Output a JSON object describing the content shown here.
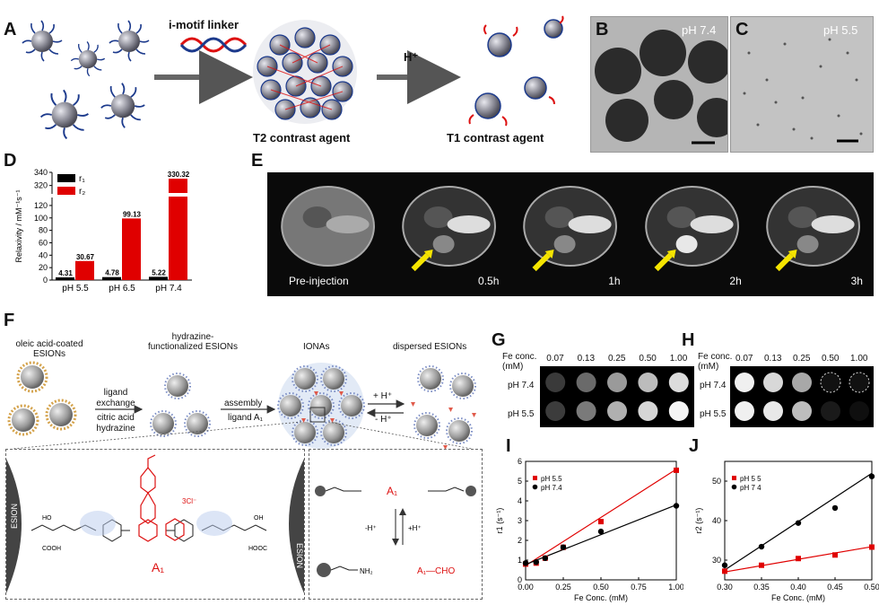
{
  "panels": {
    "A": {
      "letter": "A",
      "linker_label": "i-motif linker",
      "acid_label": "H⁺",
      "t2_label": "T2 contrast agent",
      "t1_label": "T1 contrast agent"
    },
    "B": {
      "letter": "B",
      "ph": "pH 7.4"
    },
    "C": {
      "letter": "C",
      "ph": "pH 5.5"
    },
    "D": {
      "letter": "D"
    },
    "E": {
      "letter": "E",
      "timepoints": [
        "Pre-injection",
        "0.5h",
        "1h",
        "2h",
        "3h"
      ]
    },
    "F": {
      "letter": "F",
      "step1": "oleic acid-coated\nESIONs",
      "step2": "hydrazine-\nfunctionalized  ESIONs",
      "step3": "IONAs",
      "step4": "dispersed ESIONs",
      "arrow1_top": "ligand",
      "arrow1_top2": "exchange",
      "arrow1_bottom": "citric acid",
      "arrow1_bottom2": "hydrazine",
      "arrow2_top": "assembly",
      "arrow2_bottom": "ligand A₁",
      "arrow3_top": "+ H⁺",
      "arrow3_bottom": "- H⁺",
      "esion": "ESION",
      "a1": "A₁",
      "chloride": "3Cl⁻",
      "acid_minus": "-H⁺",
      "acid_plus": "+H⁺",
      "cooh": "COOH",
      "hooc": "HOOC",
      "ho": "HO",
      "oh": "OH",
      "nh2": "NH₂",
      "cho": "A₁—CHO",
      "a1_hydrazone": "A₁"
    },
    "G": {
      "letter": "G",
      "header": "Fe conc.\n(mM)",
      "concs": [
        "0.07",
        "0.13",
        "0.25",
        "0.50",
        "1.00"
      ],
      "rows": [
        "pH 7.4",
        "pH 5.5"
      ]
    },
    "H": {
      "letter": "H",
      "header": "Fe conc.\n(mM)",
      "concs": [
        "0.07",
        "0.13",
        "0.25",
        "0.50",
        "1.00"
      ],
      "rows": [
        "pH 7.4",
        "pH 5.5"
      ]
    },
    "I": {
      "letter": "I"
    },
    "J": {
      "letter": "J"
    }
  },
  "chart_data": [
    {
      "id": "D",
      "type": "bar",
      "categories": [
        "pH 5.5",
        "pH 6.5",
        "pH 7.4"
      ],
      "series": [
        {
          "name": "r₁",
          "color": "#000000",
          "values": [
            4.31,
            4.78,
            5.22
          ]
        },
        {
          "name": "r₂",
          "color": "#e00000",
          "values": [
            30.67,
            99.13,
            330.32
          ]
        }
      ],
      "ylabel": "Relaxivity / mM⁻¹s⁻¹",
      "yticks": [
        "0",
        "20",
        "40",
        "60",
        "80",
        "100",
        "120",
        "320",
        "340"
      ],
      "axis_break": [
        130,
        310
      ],
      "data_labels": [
        "4.31",
        "30.67",
        "4.78",
        "99.13",
        "5.22",
        "330.32"
      ],
      "legend": "top-left"
    },
    {
      "id": "I",
      "type": "scatter",
      "xlabel": "Fe Conc. (mM)",
      "ylabel": "r1 (s⁻¹)",
      "xlim": [
        0,
        1.0
      ],
      "ylim": [
        0,
        6
      ],
      "xticks": [
        "0.00",
        "0.25",
        "0.50",
        "0.75",
        "1.00"
      ],
      "yticks": [
        "0",
        "1",
        "2",
        "3",
        "4",
        "5",
        "6"
      ],
      "series": [
        {
          "name": "pH 5.5",
          "color": "#e00000",
          "marker": "square",
          "x": [
            0.0,
            0.07,
            0.13,
            0.25,
            0.5,
            1.0
          ],
          "y": [
            0.8,
            0.85,
            1.1,
            1.65,
            2.95,
            5.55
          ]
        },
        {
          "name": "pH 7.4",
          "color": "#000000",
          "marker": "circle",
          "x": [
            0.0,
            0.07,
            0.13,
            0.25,
            0.5,
            1.0
          ],
          "y": [
            0.85,
            0.9,
            1.1,
            1.65,
            2.45,
            3.75
          ]
        }
      ],
      "fit_lines": [
        {
          "color": "#e00000",
          "from": [
            0,
            0.72
          ],
          "to": [
            1.0,
            5.6
          ]
        },
        {
          "color": "#000000",
          "from": [
            0,
            0.78
          ],
          "to": [
            1.0,
            3.8
          ]
        }
      ],
      "legend": "top-left"
    },
    {
      "id": "J",
      "type": "scatter",
      "xlabel": "Fe Conc. (mM)",
      "ylabel": "r2 (s⁻¹)",
      "xlim": [
        0.3,
        0.5
      ],
      "ylim": [
        25,
        55
      ],
      "xticks": [
        "0.30",
        "0.35",
        "0.40",
        "0.45",
        "0.50"
      ],
      "yticks": [
        "30",
        "40",
        "50"
      ],
      "series": [
        {
          "name": "pH 5 5",
          "color": "#e00000",
          "marker": "square",
          "x": [
            0.3,
            0.35,
            0.4,
            0.45,
            0.5
          ],
          "y": [
            27.2,
            28.7,
            30.4,
            31.3,
            33.3
          ]
        },
        {
          "name": "pH 7 4",
          "color": "#000000",
          "marker": "circle",
          "x": [
            0.3,
            0.35,
            0.4,
            0.45,
            0.5
          ],
          "y": [
            28.7,
            33.4,
            39.4,
            43.2,
            51.2
          ]
        }
      ],
      "fit_lines": [
        {
          "color": "#e00000",
          "from": [
            0.3,
            27.0
          ],
          "to": [
            0.5,
            33.4
          ]
        },
        {
          "color": "#000000",
          "from": [
            0.3,
            27.5
          ],
          "to": [
            0.5,
            52.0
          ]
        }
      ],
      "legend": "top-left"
    }
  ]
}
